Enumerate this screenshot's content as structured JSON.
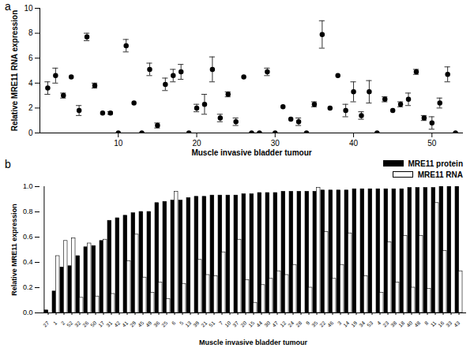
{
  "chart_data": [
    {
      "type": "scatter",
      "title": "a",
      "x_label": "Muscle invasive bladder tumour",
      "y_label": "Relative MRE11 RNA expression",
      "x": [
        1,
        2,
        3,
        4,
        5,
        6,
        7,
        8,
        9,
        10,
        11,
        12,
        13,
        14,
        15,
        16,
        17,
        18,
        19,
        20,
        21,
        22,
        23,
        24,
        25,
        26,
        27,
        28,
        29,
        30,
        31,
        32,
        33,
        34,
        35,
        36,
        37,
        38,
        39,
        40,
        41,
        42,
        43,
        44,
        45,
        46,
        47,
        48,
        49,
        50,
        51,
        52,
        53
      ],
      "values": [
        3.6,
        4.6,
        3.0,
        4.5,
        1.8,
        7.7,
        3.8,
        1.6,
        1.6,
        0,
        7.0,
        2.4,
        0,
        5.1,
        0.6,
        3.9,
        4.6,
        4.9,
        0,
        2.0,
        2.3,
        5.1,
        1.2,
        3.1,
        0.9,
        4.5,
        0,
        0,
        4.9,
        0,
        2.1,
        1.1,
        0.9,
        0,
        2.3,
        7.9,
        2.0,
        4.6,
        1.8,
        3.3,
        1.4,
        3.3,
        0,
        2.7,
        1.8,
        2.3,
        2.7,
        4.9,
        1.2,
        0.8,
        2.4,
        4.7,
        0
      ],
      "errors": [
        0.5,
        0.6,
        0.2,
        0,
        0.4,
        0.3,
        0.2,
        0,
        0.1,
        0,
        0.5,
        0,
        0,
        0.5,
        0.2,
        0.5,
        0.5,
        0.6,
        0,
        0.3,
        0.8,
        1.0,
        0.3,
        0.2,
        0.3,
        0,
        0,
        0,
        0.3,
        0,
        0,
        0,
        0.3,
        0,
        0.2,
        1.1,
        0,
        0,
        0.5,
        0.8,
        0.3,
        0.9,
        0,
        0.2,
        0,
        0.2,
        0.5,
        0.2,
        0.2,
        0.5,
        0.4,
        0.6,
        0
      ],
      "color": "#000000",
      "marker": "circle",
      "xlim": [
        0,
        54
      ],
      "xticks": [
        10,
        20,
        30,
        40,
        50
      ],
      "ylim": [
        0,
        10
      ],
      "yticks": [
        0,
        2,
        4,
        6,
        8,
        10
      ],
      "grid": false
    },
    {
      "type": "bar",
      "title": "b",
      "x_label": "Muscle invasive bladder tumour",
      "y_label": "Relative MRE11 expression",
      "categories": [
        "27",
        "1",
        "2",
        "52",
        "32",
        "26",
        "50",
        "17",
        "31",
        "42",
        "41",
        "29",
        "45",
        "49",
        "36",
        "25",
        "6",
        "5",
        "13",
        "39",
        "21",
        "51",
        "7",
        "10",
        "37",
        "20",
        "15",
        "44",
        "30",
        "47",
        "12",
        "24",
        "28",
        "9",
        "35",
        "22",
        "46",
        "3",
        "14",
        "19",
        "34",
        "53",
        "4",
        "23",
        "38",
        "18",
        "40",
        "48",
        "8",
        "11",
        "16",
        "33",
        "43"
      ],
      "series": [
        {
          "name": "MRE11 protein",
          "color": "#000000",
          "values": [
            0.02,
            0.17,
            0.36,
            0.37,
            0.45,
            0.52,
            0.53,
            0.57,
            0.73,
            0.75,
            0.77,
            0.79,
            0.8,
            0.8,
            0.87,
            0.88,
            0.89,
            0.89,
            0.91,
            0.92,
            0.92,
            0.93,
            0.93,
            0.93,
            0.93,
            0.94,
            0.94,
            0.95,
            0.95,
            0.95,
            0.96,
            0.96,
            0.96,
            0.96,
            0.96,
            0.97,
            0.97,
            0.97,
            0.97,
            0.98,
            0.98,
            0.98,
            0.98,
            0.98,
            0.98,
            0.98,
            0.99,
            0.99,
            0.99,
            0.99,
            1.0,
            1.0,
            1.0
          ]
        },
        {
          "name": "MRE11 RNA",
          "color": "#ffffff",
          "values": [
            0,
            0.45,
            0.57,
            0.59,
            0.12,
            0.55,
            0.13,
            0.58,
            0.15,
            0,
            0.41,
            0.62,
            0.28,
            0.16,
            0.24,
            0.11,
            0.96,
            0.23,
            0,
            0.42,
            0.3,
            0.29,
            0.48,
            0,
            0.58,
            0.26,
            0.08,
            0.22,
            0.27,
            0.33,
            0.3,
            0.38,
            0,
            0.2,
            0.99,
            0.64,
            0.27,
            0.38,
            0.63,
            0,
            0.29,
            0,
            0.16,
            0.56,
            0.24,
            0.61,
            0.2,
            0.61,
            0.19,
            0.87,
            0.49,
            0,
            0.33
          ]
        }
      ],
      "ylim": [
        0,
        1
      ],
      "yticks": [
        {
          "value": 0,
          "label": "0.0"
        },
        0.2,
        0.4,
        0.6,
        0.8,
        {
          "value": 1,
          "label": "1.0"
        }
      ],
      "legend": "top-right",
      "grid": false
    }
  ]
}
